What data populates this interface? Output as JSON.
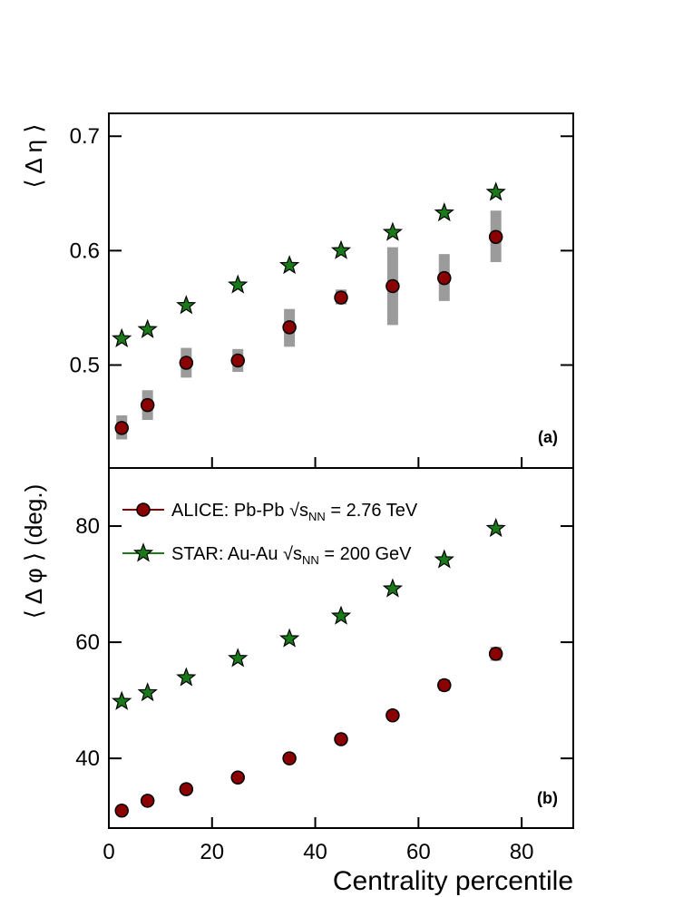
{
  "chart_data": [
    {
      "type": "scatter",
      "panel_tag": "(a)",
      "ylabel": "⟨ Δ η ⟩",
      "xlim": [
        0,
        90
      ],
      "ylim": [
        0.41,
        0.72
      ],
      "yticks": [
        "0.5",
        "0.6",
        "0.7"
      ],
      "series": [
        {
          "name": "ALICE: Pb-Pb √sNN = 2.76 TeV",
          "marker": "circle",
          "color": "#8b0000",
          "x": [
            2.5,
            7.5,
            15,
            25,
            35,
            45,
            55,
            65,
            75
          ],
          "y": [
            0.445,
            0.465,
            0.502,
            0.504,
            0.533,
            0.559,
            0.569,
            0.576,
            0.612
          ],
          "sys_low": [
            0.435,
            0.452,
            0.489,
            0.494,
            0.516,
            0.553,
            0.535,
            0.556,
            0.59
          ],
          "sys_high": [
            0.456,
            0.478,
            0.515,
            0.514,
            0.549,
            0.566,
            0.603,
            0.597,
            0.635
          ]
        },
        {
          "name": "STAR: Au-Au √sNN = 200 GeV",
          "marker": "star",
          "color": "#1a7a1a",
          "x": [
            2.5,
            7.5,
            15,
            25,
            35,
            45,
            55,
            65,
            75
          ],
          "y": [
            0.523,
            0.531,
            0.552,
            0.57,
            0.587,
            0.6,
            0.616,
            0.633,
            0.651
          ]
        }
      ]
    },
    {
      "type": "scatter",
      "panel_tag": "(b)",
      "ylabel": "⟨ Δ φ ⟩ (deg.)",
      "xlabel": "Centrality percentile",
      "xlim": [
        0,
        90
      ],
      "ylim": [
        28,
        90
      ],
      "xticks": [
        "0",
        "20",
        "40",
        "60",
        "80"
      ],
      "yticks": [
        "40",
        "60",
        "80"
      ],
      "legend_position": "top-left",
      "series": [
        {
          "name": "ALICE: Pb-Pb √sNN = 2.76 TeV",
          "marker": "circle",
          "color": "#8b0000",
          "x": [
            2.5,
            7.5,
            15,
            25,
            35,
            45,
            55,
            65,
            75
          ],
          "y": [
            31.0,
            32.7,
            34.7,
            36.7,
            40.0,
            43.3,
            47.4,
            52.6,
            58.0
          ],
          "sys_low": [
            30.6,
            32.3,
            34.3,
            36.3,
            39.6,
            42.8,
            46.8,
            51.6,
            56.8
          ],
          "sys_high": [
            31.4,
            33.1,
            35.1,
            37.1,
            40.4,
            43.8,
            48.0,
            53.6,
            59.2
          ]
        },
        {
          "name": "STAR: Au-Au √sNN = 200 GeV",
          "marker": "star",
          "color": "#1a7a1a",
          "x": [
            2.5,
            7.5,
            15,
            25,
            35,
            45,
            55,
            65,
            75
          ],
          "y": [
            49.8,
            51.3,
            53.9,
            57.2,
            60.6,
            64.5,
            69.2,
            74.2,
            79.6
          ]
        }
      ]
    }
  ],
  "legend": {
    "alice": {
      "prefix": "ALICE: Pb-Pb ",
      "sub": "NN",
      "suffix": " = 2.76 TeV"
    },
    "star": {
      "prefix": "STAR: Au-Au ",
      "sub": "NN",
      "suffix": " = 200 GeV"
    }
  }
}
